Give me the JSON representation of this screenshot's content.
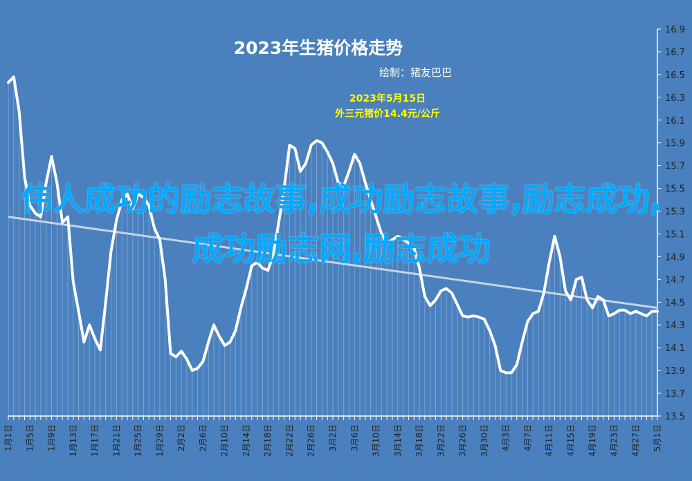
{
  "chart_data": {
    "type": "line",
    "title": "2023年生猪价格走势",
    "subtitle": "绘制：猪友巴巴",
    "annotation": {
      "line1": "2023年5月15日",
      "line2": "外三元猪价14.4元/公斤"
    },
    "ylim": [
      13.5,
      16.9
    ],
    "y_ticks": [
      "13.5",
      "13.7",
      "13.9",
      "14.1",
      "14.3",
      "14.5",
      "14.7",
      "14.9",
      "15.1",
      "15.3",
      "15.5",
      "15.7",
      "15.9",
      "16.1",
      "16.3",
      "16.5",
      "16.7",
      "16.9"
    ],
    "x_ticks": [
      "1月1日",
      "1月5日",
      "1月9日",
      "1月13日",
      "1月17日",
      "1月21日",
      "1月25日",
      "1月29日",
      "2月2日",
      "2月6日",
      "2月10日",
      "2月14日",
      "2月18日",
      "2月22日",
      "2月26日",
      "3月2日",
      "3月6日",
      "3月10日",
      "3月14日",
      "3月18日",
      "3月22日",
      "3月26日",
      "3月30日",
      "4月3日",
      "4月7日",
      "4月11日",
      "4月15日",
      "4月19日",
      "4月23日",
      "4月27日",
      "5月1日",
      "5月5日",
      "5月9日",
      "5月13日"
    ],
    "grid": false,
    "legend": "none",
    "trendline": {
      "start": 15.25,
      "end": 14.45
    },
    "colors": {
      "background": "#4a80bd",
      "line": "#ffffff",
      "trendline": "#c8d4e6",
      "title": "#ffffff",
      "annotation": "#ffff00",
      "axis_labels": "#222222"
    },
    "series": [
      {
        "values": [
          16.43,
          16.48,
          16.18,
          15.6,
          15.35,
          15.28,
          15.25,
          15.55,
          15.78,
          15.55,
          15.2,
          15.25,
          14.68,
          14.42,
          14.15,
          14.3,
          14.18,
          14.08,
          14.5,
          14.95,
          15.22,
          15.4,
          15.45,
          15.32,
          15.45,
          15.42,
          15.35,
          15.15,
          15.05,
          14.7,
          14.05,
          14.02,
          14.07,
          14.0,
          13.9,
          13.92,
          13.98,
          14.15,
          14.3,
          14.2,
          14.12,
          14.15,
          14.25,
          14.45,
          14.62,
          14.82,
          14.85,
          14.8,
          14.78,
          14.92,
          15.2,
          15.5,
          15.88,
          15.85,
          15.65,
          15.72,
          15.88,
          15.92,
          15.9,
          15.82,
          15.72,
          15.55,
          15.52,
          15.65,
          15.8,
          15.72,
          15.55,
          15.4,
          15.25,
          15.1,
          15.02,
          15.05,
          15.08,
          15.05,
          15.02,
          14.98,
          14.8,
          14.55,
          14.47,
          14.52,
          14.6,
          14.62,
          14.58,
          14.48,
          14.38,
          14.37,
          14.38,
          14.37,
          14.35,
          14.25,
          14.12,
          13.9,
          13.88,
          13.88,
          13.95,
          14.15,
          14.33,
          14.4,
          14.42,
          14.58,
          14.85,
          15.08,
          14.9,
          14.6,
          14.52,
          14.7,
          14.72,
          14.52,
          14.45,
          14.55,
          14.52,
          14.38,
          14.4,
          14.43,
          14.43,
          14.4,
          14.42,
          14.4,
          14.38,
          14.42,
          14.42
        ]
      }
    ],
    "overlay_text": "伟人成功的励志故事,成功励志故事,励志成功,成功励志网,励志成功"
  }
}
